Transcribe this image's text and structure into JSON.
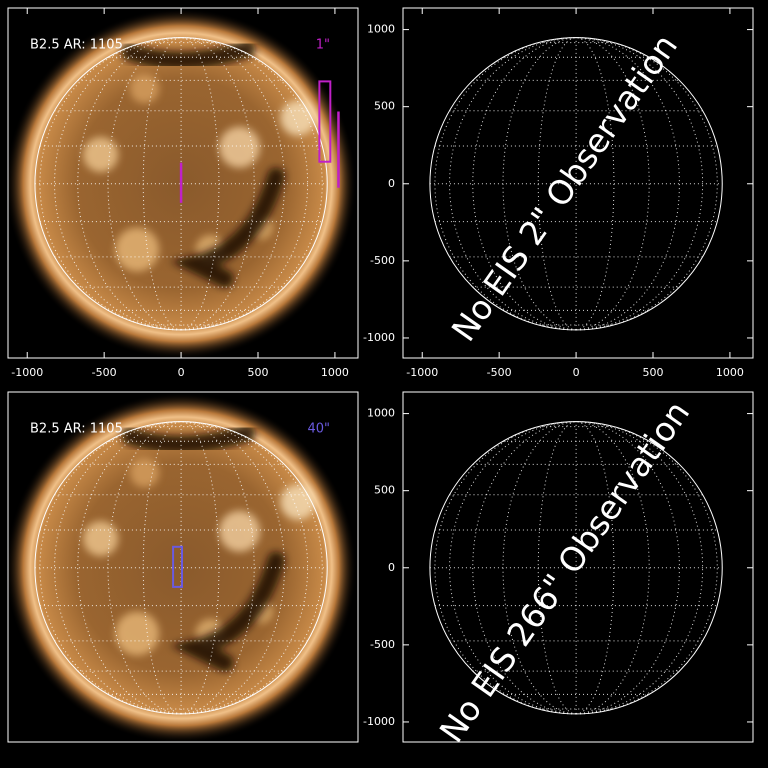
{
  "chart_data": [
    {
      "type": "sun-image",
      "label": "B2.5 AR: 1105",
      "fov_label": "1\"",
      "fov_color": "#c020c8",
      "xlim": [
        -1125,
        1150
      ],
      "ylim": [
        -1130,
        1140
      ],
      "xticks": [
        -1000,
        -500,
        0,
        500,
        1000
      ],
      "limb_radius": 950,
      "grid": true,
      "boxes": [
        {
          "x": [
            899,
            970
          ],
          "y": [
            143,
            664
          ]
        },
        {
          "x": [
            1023,
            1023
          ],
          "y": [
            -26,
            469
          ]
        },
        {
          "x": [
            0,
            0
          ],
          "y": [
            -124,
            137
          ]
        }
      ]
    },
    {
      "type": "limb-map",
      "annotation": "No EIS 2\" Observation",
      "xlim": [
        -1125,
        1150
      ],
      "ylim": [
        -1130,
        1140
      ],
      "xticks": [
        -1000,
        -500,
        0,
        500,
        1000
      ],
      "yticks": [
        -1000,
        -500,
        0,
        500,
        1000
      ],
      "limb_radius": 950,
      "grid": true
    },
    {
      "type": "sun-image",
      "label": "B2.5 AR: 1105",
      "fov_label": "40\"",
      "fov_color": "#6a5adf",
      "xlim": [
        -1125,
        1150
      ],
      "ylim": [
        -1130,
        1140
      ],
      "limb_radius": 950,
      "grid": true,
      "boxes": [
        {
          "x": [
            -52,
            6
          ],
          "y": [
            -124,
            136
          ]
        }
      ]
    },
    {
      "type": "limb-map",
      "annotation": "No EIS 266\" Observation",
      "xlim": [
        -1125,
        1150
      ],
      "ylim": [
        -1130,
        1140
      ],
      "yticks": [
        -1000,
        -500,
        0,
        500,
        1000
      ],
      "limb_radius": 950,
      "grid": true
    }
  ]
}
